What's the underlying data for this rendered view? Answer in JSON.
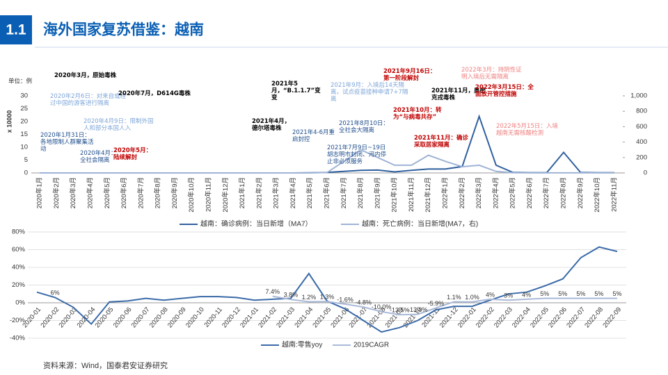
{
  "header": {
    "section": "1.1",
    "title": "海外国家复苏借鉴：越南"
  },
  "source": "资料来源：Wind，国泰君安证券研究",
  "chart_data": [
    {
      "type": "line",
      "unit": "单位：例",
      "ylabel": "x 10000",
      "categories": [
        "2020年1月",
        "2020年2月",
        "2020年3月",
        "2020年4月",
        "2020年5月",
        "2020年6月",
        "2020年7月",
        "2020年8月",
        "2020年9月",
        "2020年10月",
        "2020年11月",
        "2020年12月",
        "2021年1月",
        "2021年2月",
        "2021年3月",
        "2021年4月",
        "2021年5月",
        "2021年6月",
        "2021年7月",
        "2021年8月",
        "2021年9月",
        "2021年10月",
        "2021年11月",
        "2021年12月",
        "2022年1月",
        "2022年2月",
        "2022年3月",
        "2022年4月",
        "2022年5月",
        "2022年6月",
        "2022年7月",
        "2022年8月",
        "2022年9月",
        "2022年10月",
        "2022年11月"
      ],
      "ylim": [
        0,
        30
      ],
      "yticks": [
        0,
        5,
        10,
        15,
        20,
        25,
        30
      ],
      "y2lim": [
        0,
        1000
      ],
      "y2ticks": [
        0,
        200,
        400,
        600,
        800,
        {
          "value": 1000,
          "label": "1,000"
        }
      ],
      "series": [
        {
          "name": "越南：确诊病例：当日新增（MA7）",
          "color": "#2f5f9e",
          "values": [
            0,
            0,
            0,
            0,
            0,
            0,
            0,
            0,
            0,
            0,
            0,
            0,
            0,
            0,
            0,
            0,
            0.05,
            0.2,
            0.6,
            1.0,
            1.1,
            0.4,
            1.0,
            1.5,
            1.5,
            2.5,
            22,
            3,
            0.2,
            0.1,
            0.1,
            8,
            0.2,
            0.1,
            0.1
          ]
        },
        {
          "name": "越南：死亡病例：当日新增(MA7，右)",
          "color": "#9fb3d6",
          "axis": "y2",
          "values": [
            0,
            0,
            0,
            0,
            0,
            0,
            0,
            0,
            0,
            0,
            0,
            0,
            0,
            0,
            0,
            0,
            1,
            5,
            150,
            300,
            200,
            100,
            100,
            230,
            150,
            80,
            100,
            20,
            2,
            1,
            1,
            1,
            1,
            1,
            1
          ]
        }
      ],
      "annotations": [
        {
          "text": "2020年3月，原始毒株",
          "color": "#000000"
        },
        {
          "text": "2020年2月6日：对来自或经过中国的游客进行隔离",
          "color": "#7ea6d8"
        },
        {
          "text": "2020年1月31日：各地限制人群聚集活动",
          "color": "#1f4e8c"
        },
        {
          "text": "2020年4月9日：限制外国人和部分本国人入",
          "color": "#7ea6d8"
        },
        {
          "text": "2020年4月：全社会隔离",
          "color": "#1f4e8c"
        },
        {
          "text": "2020年5月：陆续解封",
          "color": "#c00000"
        },
        {
          "text": "2020年7月，D614G毒株",
          "color": "#000000"
        },
        {
          "text": "2021年4月，德尔塔毒株",
          "color": "#000000"
        },
        {
          "text": "2021年5月，“B.1.1.7”变变",
          "color": "#000000"
        },
        {
          "text": "2021年4-6月重启封控",
          "color": "#1f4e8c"
        },
        {
          "text": "2021年9月：入境后14天隔离，试点疫苗接种申请7+7隔离",
          "color": "#7ea6d8"
        },
        {
          "text": "2021年8月10日：全社会大隔离",
          "color": "#1f4e8c"
        },
        {
          "text": "2021年7月9日~19日胡志明市封闭、河内停止非必须服务",
          "color": "#1f4e8c"
        },
        {
          "text": "2021年9月16日：第一阶段解封",
          "color": "#c00000"
        },
        {
          "text": "2021年10月：转为“与病毒共存”",
          "color": "#c00000"
        },
        {
          "text": "2021年11月，奥密克戎毒株",
          "color": "#000000"
        },
        {
          "text": "2021年11月：确诊采取居家隔离",
          "color": "#c00000"
        },
        {
          "text": "2022年3月：持阴性证明入境后无需隔离",
          "color": "#f08080"
        },
        {
          "text": "2022年3月15日：全面放开管控措施",
          "color": "#c00000"
        },
        {
          "text": "2022年5月15日：入境越南无需核酸检测",
          "color": "#f08080"
        }
      ]
    },
    {
      "type": "line",
      "categories": [
        "2020-01",
        "2020-02",
        "2020-03",
        "2020-04",
        "2020-05",
        "2020-06",
        "2020-07",
        "2020-08",
        "2020-09",
        "2020-10",
        "2020-11",
        "2020-12",
        "2021-01",
        "2021-02",
        "2021-03",
        "2021-04",
        "2021-05",
        "2021-06",
        "2021-07",
        "2021-08",
        "2021-09",
        "2021-10",
        "2021-11",
        "2021-12",
        "2022-01",
        "2022-02",
        "2022-03",
        "2022-04",
        "2022-05",
        "2022-06",
        "2022-07",
        "2022-08",
        "2022-09"
      ],
      "ylim": [
        -40,
        80
      ],
      "yticks": [
        {
          "value": -40,
          "label": "-40%"
        },
        {
          "value": -20,
          "label": "-20%"
        },
        {
          "value": 0,
          "label": "0%"
        },
        {
          "value": 20,
          "label": "20%"
        },
        {
          "value": 40,
          "label": "40%"
        },
        {
          "value": 60,
          "label": "60%"
        },
        {
          "value": 80,
          "label": "80%"
        }
      ],
      "series": [
        {
          "name": "越南:零售yoy",
          "color": "#3a6aa8",
          "values": [
            12,
            6,
            -5,
            -24,
            1,
            2,
            5,
            3,
            5,
            7,
            7,
            6,
            3,
            4,
            5,
            33,
            2,
            -7,
            -20,
            -33,
            -28,
            -20,
            -8,
            -4,
            -4,
            3,
            10,
            12,
            19,
            27,
            51,
            63,
            58
          ],
          "value_labels": [
            null,
            "6%",
            null,
            null,
            null,
            null,
            null,
            null,
            null,
            null,
            null,
            null,
            null,
            null,
            null,
            null,
            null,
            null,
            null,
            null,
            null,
            null,
            null,
            null,
            null,
            null,
            null,
            null,
            null,
            null,
            null,
            null,
            null
          ]
        },
        {
          "name": "2019CAGR",
          "color": "#a9b9d8",
          "values": [
            null,
            null,
            null,
            null,
            null,
            null,
            null,
            null,
            null,
            null,
            null,
            null,
            null,
            7.4,
            3.8,
            1.2,
            1.3,
            -1.6,
            -4.8,
            -10.0,
            -13.5,
            -13.0,
            -5.9,
            1.1,
            1.0,
            4,
            3,
            4,
            5,
            5,
            5,
            5,
            5
          ],
          "value_labels": [
            null,
            null,
            null,
            null,
            null,
            null,
            null,
            null,
            null,
            null,
            null,
            null,
            null,
            "7.4%",
            "3.8%",
            "1.2%",
            "1.3%",
            "-1.6%",
            "-4.8%",
            "-10.0%",
            "-13.5%",
            "-13.0%",
            "-5.9%",
            "1.1%",
            "1.0%",
            "4%",
            "3%",
            "4%",
            "5%",
            "5%",
            "5%",
            "5%",
            "5%"
          ]
        }
      ]
    }
  ]
}
